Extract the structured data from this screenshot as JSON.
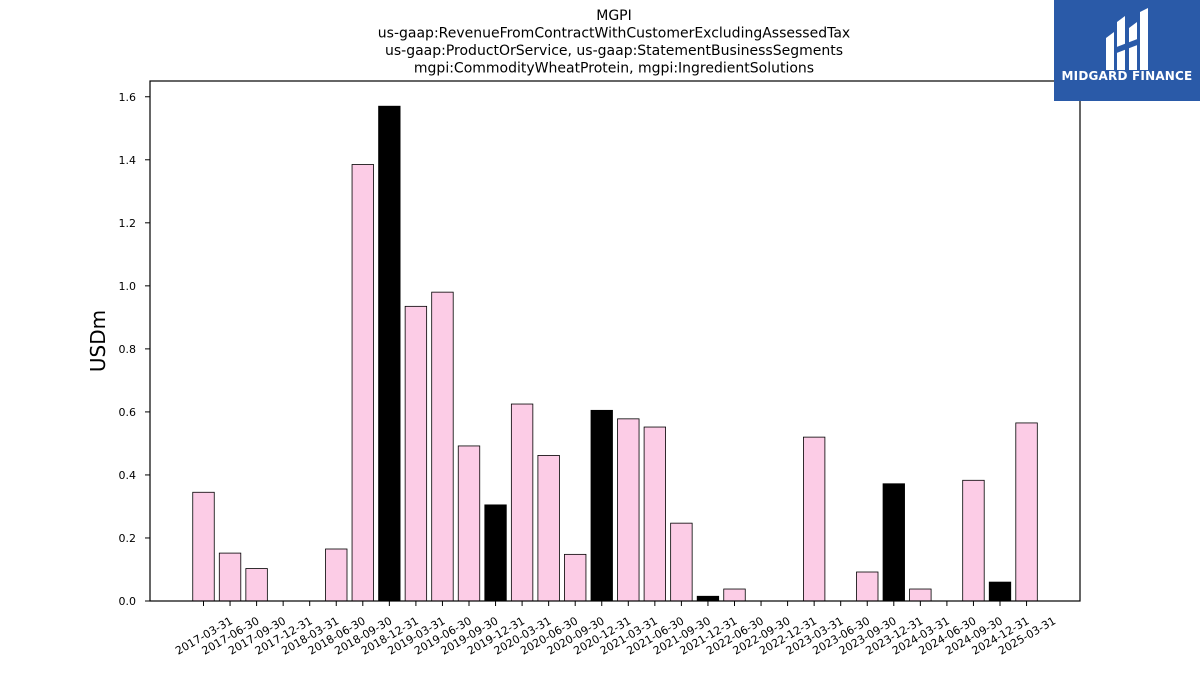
{
  "brand": {
    "name": "MIDGARD FINANCE",
    "bg_color": "#2a5aa8",
    "icon": "midgard-logo-icon"
  },
  "chart_data": {
    "type": "bar",
    "title_lines": [
      "MGPI",
      "us-gaap:RevenueFromContractWithCustomerExcludingAssessedTax",
      "us-gaap:ProductOrService, us-gaap:StatementBusinessSegments",
      "mgpi:CommodityWheatProtein, mgpi:IngredientSolutions"
    ],
    "ylabel": "USDm",
    "xlabel": "",
    "ylim": [
      0,
      1.65
    ],
    "yticks": [
      "0.0",
      "0.2",
      "0.4",
      "0.6",
      "0.8",
      "1.0",
      "1.2",
      "1.4",
      "1.6"
    ],
    "grid": false,
    "colors": {
      "pink": "#fccce6",
      "black": "#000000",
      "edge": "#000000"
    },
    "categories": [
      "2017-03-31",
      "2017-06-30",
      "2017-09-30",
      "2017-12-31",
      "2018-03-31",
      "2018-06-30",
      "2018-09-30",
      "2018-12-31",
      "2019-03-31",
      "2019-06-30",
      "2019-09-30",
      "2019-12-31",
      "2020-03-31",
      "2020-06-30",
      "2020-09-30",
      "2020-12-31",
      "2021-03-31",
      "2021-06-30",
      "2021-09-30",
      "2021-12-31",
      "2022-06-30",
      "2022-09-30",
      "2022-12-31",
      "2023-03-31",
      "2023-06-30",
      "2023-09-30",
      "2023-12-31",
      "2024-03-31",
      "2024-06-30",
      "2024-09-30",
      "2024-12-31",
      "2025-03-31"
    ],
    "values": [
      0.345,
      0.152,
      0.103,
      0,
      0,
      0.165,
      1.385,
      1.57,
      0.935,
      0.98,
      0.492,
      0.305,
      0.625,
      0.462,
      0.148,
      0.605,
      0.578,
      0.552,
      0.247,
      0.015,
      0.038,
      0,
      0,
      0.52,
      0,
      0.092,
      0.372,
      0.038,
      0,
      0.383,
      0.06,
      0.565
    ],
    "bar_colors": [
      "pink",
      "pink",
      "pink",
      "pink",
      "pink",
      "pink",
      "pink",
      "black",
      "pink",
      "pink",
      "pink",
      "black",
      "pink",
      "pink",
      "pink",
      "black",
      "pink",
      "pink",
      "pink",
      "black",
      "pink",
      "pink",
      "pink",
      "pink",
      "pink",
      "pink",
      "black",
      "pink",
      "pink",
      "pink",
      "black",
      "pink"
    ]
  }
}
